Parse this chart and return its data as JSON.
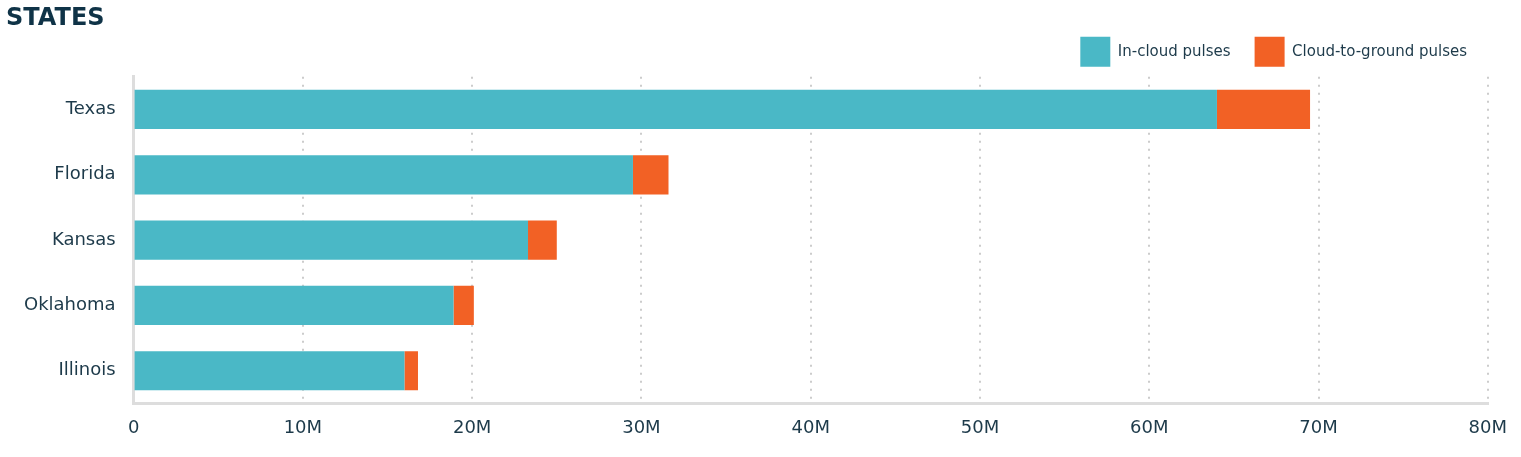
{
  "chart_data": {
    "type": "bar",
    "orientation": "horizontal",
    "stacked": true,
    "title": "STATES",
    "categories": [
      "Texas",
      "Florida",
      "Kansas",
      "Oklahoma",
      "Illinois"
    ],
    "series": [
      {
        "name": "In-cloud pulses",
        "color": "#4ab8c6",
        "values": [
          64,
          29.5,
          23.3,
          18.9,
          16
        ]
      },
      {
        "name": "Cloud-to-ground pulses",
        "color": "#f26125",
        "values": [
          5.5,
          2.1,
          1.7,
          1.2,
          0.8
        ]
      }
    ],
    "xlim": [
      0,
      80
    ],
    "xticks": [
      0,
      {
        "value": 10,
        "label": "10M"
      },
      {
        "value": 20,
        "label": "20M"
      },
      {
        "value": 30,
        "label": "30M"
      },
      {
        "value": 40,
        "label": "40M"
      },
      {
        "value": 50,
        "label": "50M"
      },
      {
        "value": 60,
        "label": "60M"
      },
      {
        "value": 70,
        "label": "70M"
      },
      {
        "value": 80,
        "label": "80M"
      }
    ],
    "grid": "x",
    "legend": "top right"
  }
}
